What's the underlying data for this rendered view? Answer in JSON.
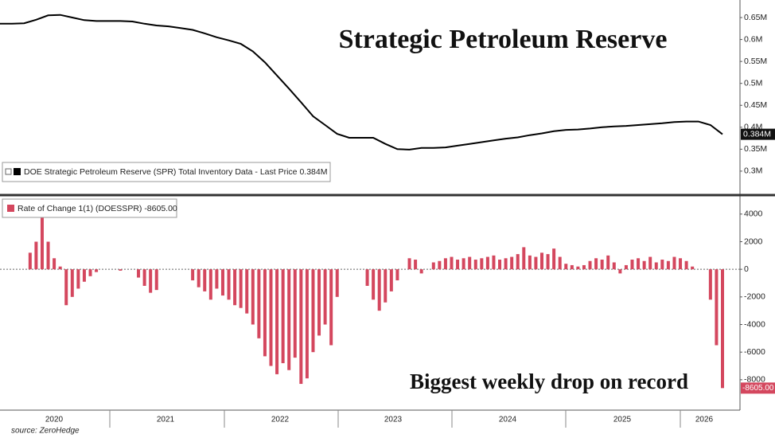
{
  "chart_data": [
    {
      "type": "line",
      "title": "Strategic Petroleum Reserve",
      "series": [
        {
          "name": "DOE Strategic Petroleum Reserve (SPR) Total Inventory Data - Last Price 0.384M",
          "color": "#000000",
          "values": [
            636000,
            636000,
            637000,
            645000,
            655000,
            656000,
            650000,
            644000,
            642000,
            642000,
            642000,
            641000,
            636000,
            632000,
            630000,
            626000,
            622000,
            614000,
            605000,
            598000,
            590000,
            573000,
            548000,
            518000,
            488000,
            457000,
            425000,
            405000,
            385000,
            376000,
            376000,
            376000,
            362000,
            350000,
            349000,
            353000,
            353000,
            354000,
            358000,
            362000,
            366000,
            370000,
            374000,
            377000,
            382000,
            386000,
            391000,
            394000,
            395000,
            397000,
            400000,
            402000,
            403000,
            405000,
            407000,
            409000,
            412000,
            413000,
            413000,
            405000,
            384000
          ]
        }
      ],
      "last_value_label": "0.384M",
      "ylim": [
        249000,
        690000
      ],
      "yticks": [
        {
          "value": 300000,
          "label": "0.3M"
        },
        {
          "value": 350000,
          "label": "0.35M"
        },
        {
          "value": 400000,
          "label": "0.4M"
        },
        {
          "value": 450000,
          "label": "0.45M"
        },
        {
          "value": 500000,
          "label": "0.5M"
        },
        {
          "value": 550000,
          "label": "0.55M"
        },
        {
          "value": 600000,
          "label": "0.6M"
        },
        {
          "value": 650000,
          "label": "0.65M"
        }
      ],
      "grid": false
    },
    {
      "type": "bar",
      "annotation": "Biggest weekly drop on record",
      "series": [
        {
          "name": "Rate of Change 1(1) (DOESSPR) -8605.00",
          "color": "#d4475e",
          "values": [
            0,
            0,
            0,
            0,
            0,
            1200,
            2000,
            3800,
            2000,
            800,
            200,
            -2600,
            -2000,
            -1400,
            -900,
            -500,
            -200,
            0,
            0,
            0,
            -100,
            0,
            0,
            -600,
            -1200,
            -1700,
            -1500,
            0,
            0,
            0,
            0,
            0,
            -800,
            -1300,
            -1600,
            -2200,
            -1400,
            -1900,
            -2200,
            -2600,
            -2800,
            -3200,
            -4000,
            -5000,
            -6300,
            -7000,
            -7600,
            -6800,
            -7300,
            -6400,
            -8300,
            -7900,
            -6000,
            -4800,
            -4000,
            -5500,
            -2000,
            0,
            0,
            0,
            0,
            -1200,
            -2200,
            -3000,
            -2400,
            -1600,
            -800,
            0,
            800,
            700,
            -300,
            0,
            500,
            600,
            800,
            900,
            700,
            800,
            900,
            700,
            800,
            900,
            1000,
            700,
            800,
            900,
            1100,
            1600,
            1000,
            900,
            1200,
            1100,
            1500,
            900,
            400,
            300,
            200,
            300,
            600,
            800,
            700,
            1000,
            500,
            -300,
            300,
            700,
            800,
            600,
            900,
            500,
            700,
            600,
            900,
            800,
            600,
            200,
            0,
            0,
            -2200,
            -5500,
            -8605
          ]
        }
      ],
      "last_value_label": "-8605.00",
      "ylim": [
        -10200,
        5200
      ],
      "yticks": [
        -8000,
        -6000,
        -4000,
        -2000,
        0,
        2000,
        4000
      ],
      "grid": false,
      "x_labels": [
        "2020",
        "2021",
        "2022",
        "2023",
        "2024",
        "2025",
        "2026"
      ]
    }
  ],
  "source": "source: ZeroHedge"
}
